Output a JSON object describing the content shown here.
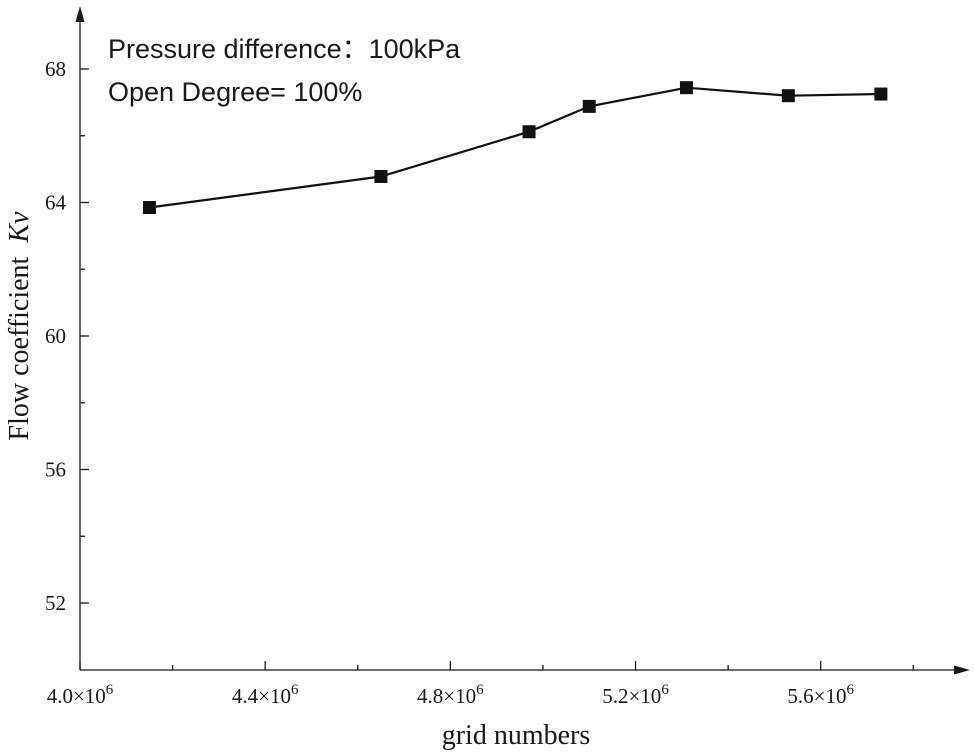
{
  "chart_data": {
    "type": "line",
    "ylabel_prefix": "Flow coefficient",
    "ylabel_var": "Kv",
    "xlabel": "grid numbers",
    "annotations": [
      "Pressure difference：100kPa",
      "Open Degree= 100%"
    ],
    "x_exponent": "6",
    "x_ticks": [
      {
        "value": 4.0,
        "label": "4.0×10"
      },
      {
        "value": 4.4,
        "label": "4.4×10"
      },
      {
        "value": 4.8,
        "label": "4.8×10"
      },
      {
        "value": 5.2,
        "label": "5.2×10"
      },
      {
        "value": 5.6,
        "label": "5.6×10"
      }
    ],
    "x_minor_ticks": [
      4.2,
      4.6,
      5.0,
      5.4,
      5.8
    ],
    "y_ticks": [
      {
        "value": 52,
        "label": "52"
      },
      {
        "value": 56,
        "label": "56"
      },
      {
        "value": 60,
        "label": "60"
      },
      {
        "value": 64,
        "label": "64"
      },
      {
        "value": 68,
        "label": "68"
      }
    ],
    "y_minor_ticks": [
      54,
      58,
      62,
      66
    ],
    "xlim": [
      4.0,
      5.9
    ],
    "ylim": [
      50,
      69.4
    ],
    "series": [
      {
        "name": "Kv",
        "x": [
          4.15,
          4.65,
          4.97,
          5.1,
          5.31,
          5.53,
          5.73
        ],
        "y": [
          63.85,
          64.78,
          66.12,
          66.88,
          67.44,
          67.2,
          67.25
        ]
      }
    ]
  }
}
